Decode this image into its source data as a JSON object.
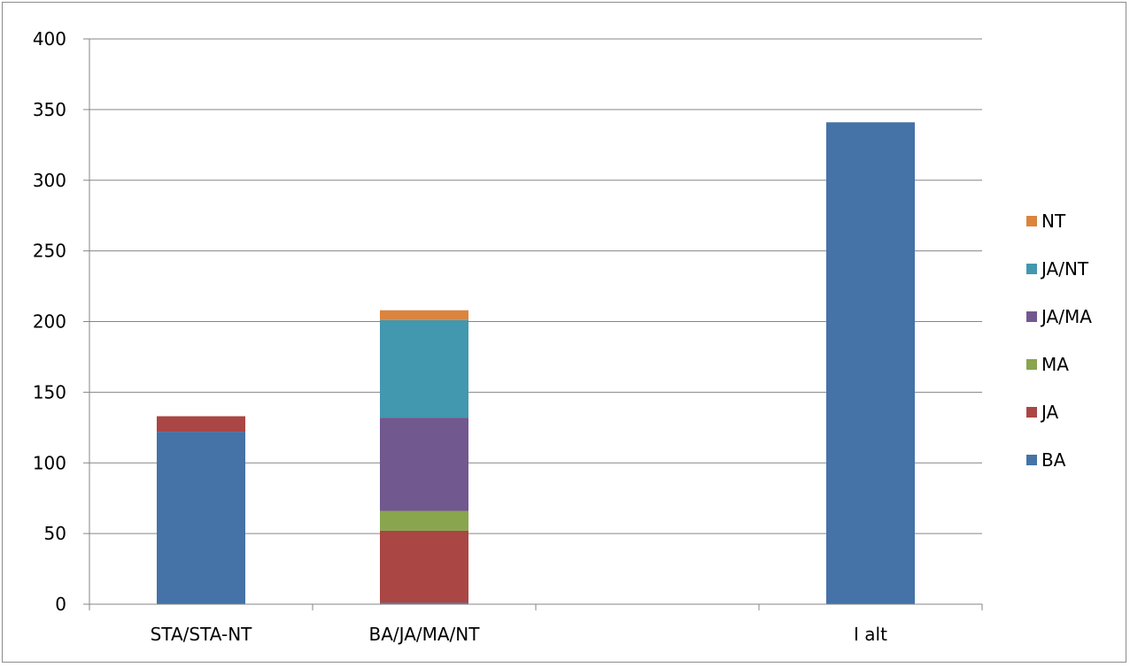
{
  "chart_data": {
    "type": "bar",
    "stacked": true,
    "title": "",
    "xlabel": "",
    "ylabel": "",
    "categories": [
      "STA/STA-NT",
      "BA/JA/MA/NT",
      "",
      "I alt"
    ],
    "ylim": [
      0,
      400
    ],
    "yticks": [
      0,
      50,
      100,
      150,
      200,
      250,
      300,
      350,
      400
    ],
    "grid": true,
    "legend_position": "right",
    "series": [
      {
        "name": "BA",
        "color": "#4572a7",
        "values": [
          122,
          1,
          0,
          341
        ]
      },
      {
        "name": "JA",
        "color": "#aa4643",
        "values": [
          11,
          51,
          0,
          0
        ]
      },
      {
        "name": "MA",
        "color": "#89a54e",
        "values": [
          0,
          14,
          0,
          0
        ]
      },
      {
        "name": "JA/MA",
        "color": "#71588f",
        "values": [
          0,
          66,
          0,
          0
        ]
      },
      {
        "name": "JA/NT",
        "color": "#4198af",
        "values": [
          0,
          69,
          0,
          0
        ]
      },
      {
        "name": "NT",
        "color": "#db843d",
        "values": [
          0,
          7,
          0,
          0
        ]
      }
    ]
  }
}
